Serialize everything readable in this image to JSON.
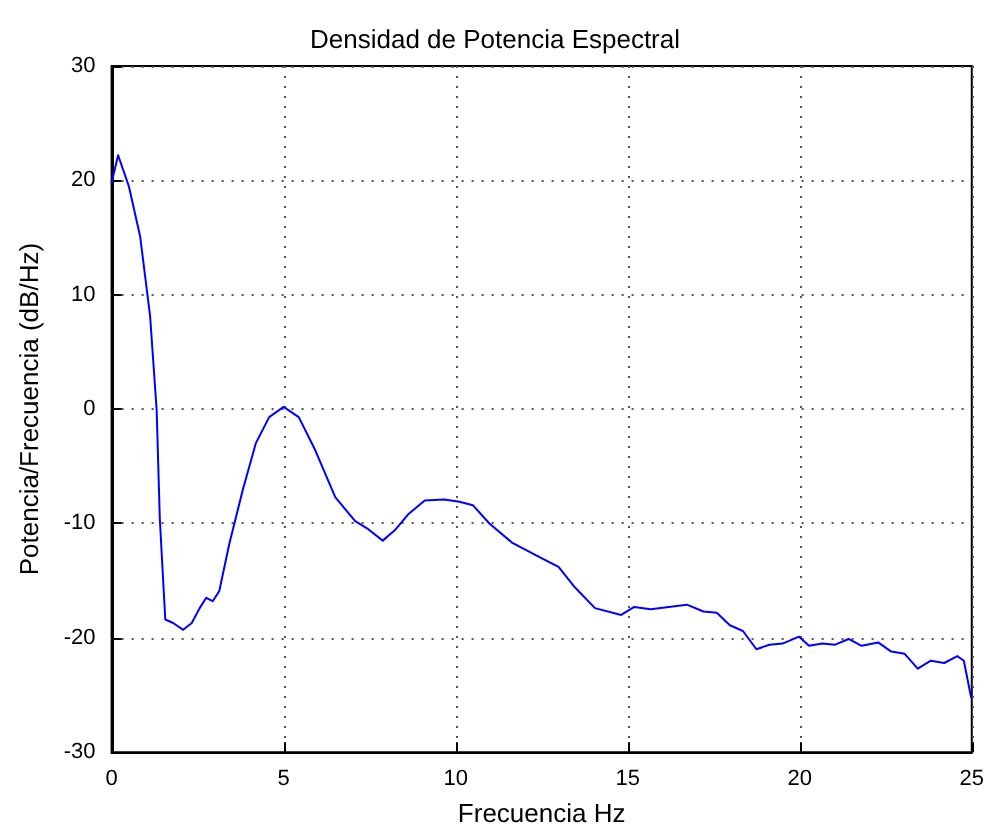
{
  "chart_data": {
    "type": "line",
    "title": "Densidad de Potencia Espectral",
    "xlabel": "Frecuencia Hz",
    "ylabel": "Potencia/Frecuencia (dB/Hz)",
    "xlim": [
      0,
      25
    ],
    "xticks": [
      0,
      5,
      10,
      15,
      20,
      25
    ],
    "ylim": [
      -30,
      30
    ],
    "yticks": [
      -30,
      -20,
      -10,
      0,
      10,
      20,
      30
    ],
    "grid": true,
    "marker": "none",
    "line_style": "solid",
    "series": [
      {
        "color": "#0000ff",
        "x": [
          0,
          0.19,
          0.5,
          0.83,
          1.12,
          1.31,
          1.4,
          1.56,
          1.79,
          2.08,
          2.33,
          2.56,
          2.75,
          2.94,
          3.13,
          3.42,
          3.81,
          4.19,
          4.58,
          5.0,
          5.44,
          5.92,
          6.5,
          7.08,
          7.46,
          7.88,
          8.23,
          8.62,
          9.1,
          9.67,
          10.11,
          10.5,
          10.98,
          11.65,
          12.41,
          12.99,
          13.47,
          14.05,
          14.81,
          15.19,
          15.67,
          16.72,
          17.2,
          17.59,
          17.97,
          18.35,
          18.74,
          19.12,
          19.5,
          19.98,
          20.27,
          20.65,
          21.03,
          21.42,
          21.8,
          22.28,
          22.66,
          23.05,
          23.43,
          23.81,
          24.2,
          24.58,
          24.77,
          24.98
        ],
        "values": [
          19.8,
          22.2,
          19.5,
          15.1,
          8.1,
          -0.1,
          -9.5,
          -18.4,
          -18.7,
          -19.3,
          -18.7,
          -17.4,
          -16.5,
          -16.8,
          -15.9,
          -11.8,
          -7.1,
          -3.0,
          -0.7,
          0.2,
          -0.7,
          -3.6,
          -7.7,
          -9.8,
          -10.5,
          -11.5,
          -10.6,
          -9.2,
          -8.0,
          -7.9,
          -8.1,
          -8.4,
          -10.0,
          -11.7,
          -12.9,
          -13.8,
          -15.6,
          -17.4,
          -18.0,
          -17.3,
          -17.5,
          -17.1,
          -17.7,
          -17.8,
          -18.9,
          -19.4,
          -21.0,
          -20.6,
          -20.5,
          -19.9,
          -20.7,
          -20.5,
          -20.6,
          -20.1,
          -20.7,
          -20.4,
          -21.2,
          -21.4,
          -22.7,
          -22.0,
          -22.2,
          -21.6,
          -22.0,
          -25.2
        ]
      }
    ]
  }
}
